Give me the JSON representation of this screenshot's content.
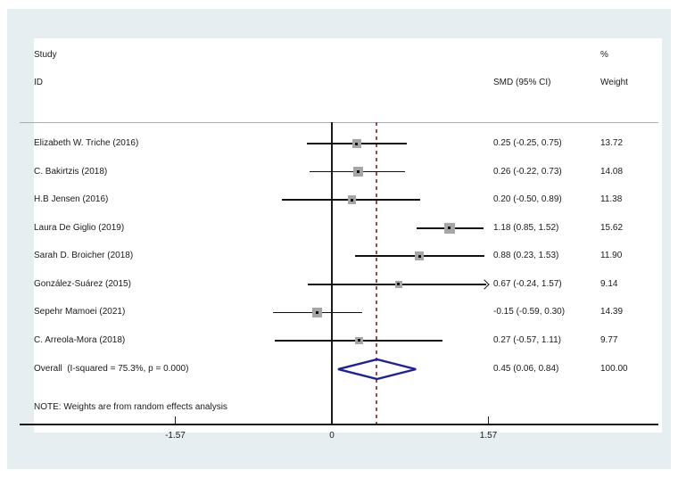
{
  "header": {
    "study_line1": "Study",
    "study_line2": "ID",
    "effect_label": "SMD (95% CI)",
    "percent_label": "%",
    "weight_label": "Weight"
  },
  "figure": {
    "note": "NOTE: Weights are from random effects analysis"
  },
  "colors": {
    "panel_bg": "#e6eef1",
    "plot_bg": "#ffffff",
    "ci_line": "#111111",
    "marker_fill": "#a6a6a6",
    "marker_dot": "#111111",
    "zero_line": "#1a1a1a",
    "overall_dashed_line": "#a84a4a",
    "diamond_stroke": "#20209a"
  },
  "chart_data": {
    "type": "forest",
    "effect_measure": "SMD",
    "x_axis": {
      "ticks": [
        {
          "value": -1.57,
          "label": "-1.57"
        },
        {
          "value": 0,
          "label": "0"
        },
        {
          "value": 1.57,
          "label": "1.57"
        }
      ],
      "range": [
        -1.57,
        1.57
      ],
      "zero_line_at": 0,
      "overall_dashed_line_at": 0.45
    },
    "studies": [
      {
        "id": "Elizabeth W. Triche (2016)",
        "est": 0.25,
        "lo": -0.25,
        "hi": 0.75,
        "ci_text": "0.25 (-0.25, 0.75)",
        "weight": 13.72,
        "weight_text": "13.72",
        "arrow_hi": false
      },
      {
        "id": "C. Bakirtzis (2018)",
        "est": 0.26,
        "lo": -0.22,
        "hi": 0.73,
        "ci_text": "0.26 (-0.22, 0.73)",
        "weight": 14.08,
        "weight_text": "14.08",
        "arrow_hi": false
      },
      {
        "id": "H.B Jensen (2016)",
        "est": 0.2,
        "lo": -0.5,
        "hi": 0.89,
        "ci_text": "0.20 (-0.50, 0.89)",
        "weight": 11.38,
        "weight_text": "11.38",
        "arrow_hi": false
      },
      {
        "id": "Laura De Giglio (2019)",
        "est": 1.18,
        "lo": 0.85,
        "hi": 1.52,
        "ci_text": "1.18 (0.85, 1.52)",
        "weight": 15.62,
        "weight_text": "15.62",
        "arrow_hi": false
      },
      {
        "id": "Sarah D. Broicher (2018)",
        "est": 0.88,
        "lo": 0.23,
        "hi": 1.53,
        "ci_text": "0.88 (0.23, 1.53)",
        "weight": 11.9,
        "weight_text": "11.90",
        "arrow_hi": false
      },
      {
        "id": "González-Suárez (2015)",
        "est": 0.67,
        "lo": -0.24,
        "hi": 1.57,
        "ci_text": "0.67 (-0.24, 1.57)",
        "weight": 9.14,
        "weight_text": "9.14",
        "arrow_hi": true
      },
      {
        "id": "Sepehr Mamoei (2021)",
        "est": -0.15,
        "lo": -0.59,
        "hi": 0.3,
        "ci_text": "-0.15 (-0.59, 0.30)",
        "weight": 14.39,
        "weight_text": "14.39",
        "arrow_hi": false
      },
      {
        "id": "C. Arreola-Mora (2018)",
        "est": 0.27,
        "lo": -0.57,
        "hi": 1.11,
        "ci_text": "0.27 (-0.57, 1.11)",
        "weight": 9.77,
        "weight_text": "9.77",
        "arrow_hi": false
      }
    ],
    "overall": {
      "label": "Overall  (I-squared = 75.3%, p = 0.000)",
      "est": 0.45,
      "lo": 0.06,
      "hi": 0.84,
      "ci_text": "0.45 (0.06, 0.84)",
      "weight_text": "100.00"
    }
  }
}
